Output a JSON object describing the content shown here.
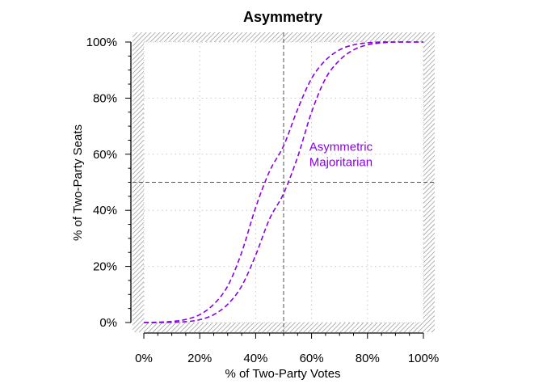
{
  "chart_data": {
    "type": "line",
    "title": "Asymmetry",
    "xlabel": "% of Two-Party Votes",
    "ylabel": "% of Two-Party Seats",
    "xlim": [
      0,
      1
    ],
    "ylim": [
      0,
      1
    ],
    "x_ticks": [
      {
        "value": 0,
        "label": "0%"
      },
      {
        "value": 0.2,
        "label": "20%"
      },
      {
        "value": 0.4,
        "label": "40%"
      },
      {
        "value": 0.6,
        "label": "60%"
      },
      {
        "value": 0.8,
        "label": "80%"
      },
      {
        "value": 1,
        "label": "100%"
      }
    ],
    "y_ticks": [
      {
        "value": 0,
        "label": "0%"
      },
      {
        "value": 0.2,
        "label": "20%"
      },
      {
        "value": 0.4,
        "label": "40%"
      },
      {
        "value": 0.6,
        "label": "60%"
      },
      {
        "value": 0.8,
        "label": "80%"
      },
      {
        "value": 1,
        "label": "100%"
      }
    ],
    "grid": true,
    "reference_lines": {
      "x": 0.5,
      "y": 0.5
    },
    "color": "#8a00e6",
    "line_style": "dashed",
    "annotation": {
      "lines": [
        "Asymmetric",
        "Majoritarian"
      ],
      "x": 0.705,
      "y": 0.59
    },
    "x": [
      0,
      0.05,
      0.1,
      0.15,
      0.2,
      0.25,
      0.3,
      0.35,
      0.4,
      0.45,
      0.5,
      0.55,
      0.6,
      0.65,
      0.7,
      0.75,
      0.8,
      0.85,
      0.9,
      0.95,
      1
    ],
    "series": [
      {
        "values": [
          0,
          0.001,
          0.004,
          0.011,
          0.028,
          0.065,
          0.13,
          0.25,
          0.41,
          0.54,
          0.63,
          0.76,
          0.87,
          0.935,
          0.972,
          0.99,
          0.997,
          1,
          1,
          1,
          1
        ]
      },
      {
        "values": [
          0,
          0,
          0.001,
          0.003,
          0.01,
          0.028,
          0.065,
          0.13,
          0.24,
          0.37,
          0.46,
          0.59,
          0.75,
          0.87,
          0.935,
          0.972,
          0.99,
          0.997,
          1,
          1,
          1
        ]
      }
    ]
  }
}
